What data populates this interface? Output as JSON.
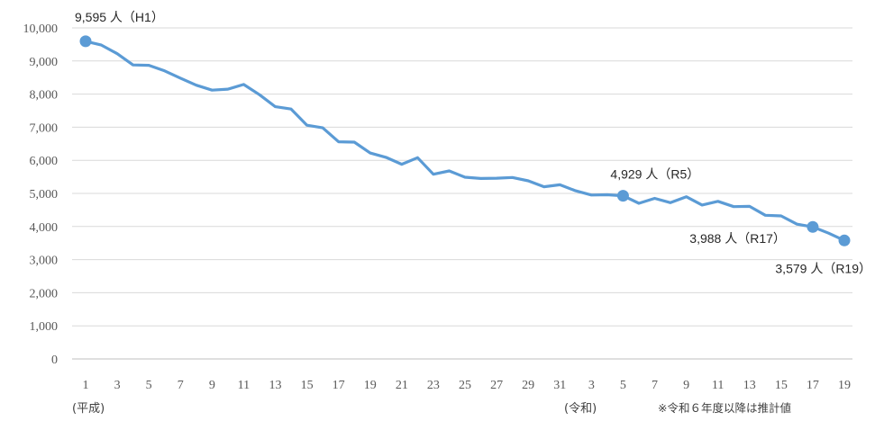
{
  "chart_data": {
    "type": "line",
    "title": "",
    "xlabel": "",
    "ylabel": "",
    "ylim": [
      0,
      10000
    ],
    "y_ticks": [
      "10,000",
      "9,000",
      "8,000",
      "7,000",
      "6,000",
      "5,000",
      "4,000",
      "3,000",
      "2,000",
      "1,000",
      "0"
    ],
    "x_tick_labels": [
      "1",
      "3",
      "5",
      "7",
      "9",
      "11",
      "13",
      "15",
      "17",
      "19",
      "21",
      "23",
      "25",
      "27",
      "29",
      "31",
      "3",
      "5",
      "7",
      "9",
      "11",
      "13",
      "15",
      "17",
      "19"
    ],
    "era_labels": [
      "(平成)",
      "(令和)"
    ],
    "note": "※令和６年度以降は推計値",
    "grid": true,
    "line_color": "#5b9bd5",
    "series": [
      {
        "x": [
          "H1",
          "H2",
          "H3",
          "H4",
          "H5",
          "H6",
          "H7",
          "H8",
          "H9",
          "H10",
          "H11",
          "H12",
          "H13",
          "H14",
          "H15",
          "H16",
          "H17",
          "H18",
          "H19",
          "H20",
          "H21",
          "H22",
          "H23",
          "H24",
          "H25",
          "H26",
          "H27",
          "H28",
          "H29",
          "H30",
          "H31",
          "R2",
          "R3",
          "R4",
          "R5",
          "R6",
          "R7",
          "R8",
          "R9",
          "R10",
          "R11",
          "R12",
          "R13",
          "R14",
          "R15",
          "R16",
          "R17",
          "R18",
          "R19"
        ],
        "values": [
          9595,
          9480,
          9220,
          8880,
          8870,
          8700,
          8480,
          8270,
          8120,
          8150,
          8290,
          7980,
          7620,
          7550,
          7060,
          6980,
          6560,
          6550,
          6220,
          6090,
          5880,
          6080,
          5580,
          5680,
          5490,
          5450,
          5460,
          5480,
          5380,
          5200,
          5260,
          5080,
          4950,
          4960,
          4929,
          4700,
          4850,
          4720,
          4900,
          4650,
          4760,
          4600,
          4610,
          4340,
          4320,
          4070,
          3988,
          3800,
          3579
        ]
      }
    ],
    "annotations": [
      {
        "label": "9,595 人（H1）",
        "index": 0
      },
      {
        "label": "4,929 人（R5）",
        "index": 34
      },
      {
        "label": "3,988 人（R17）",
        "index": 46
      },
      {
        "label": "3,579 人（R19）",
        "index": 48
      }
    ]
  }
}
